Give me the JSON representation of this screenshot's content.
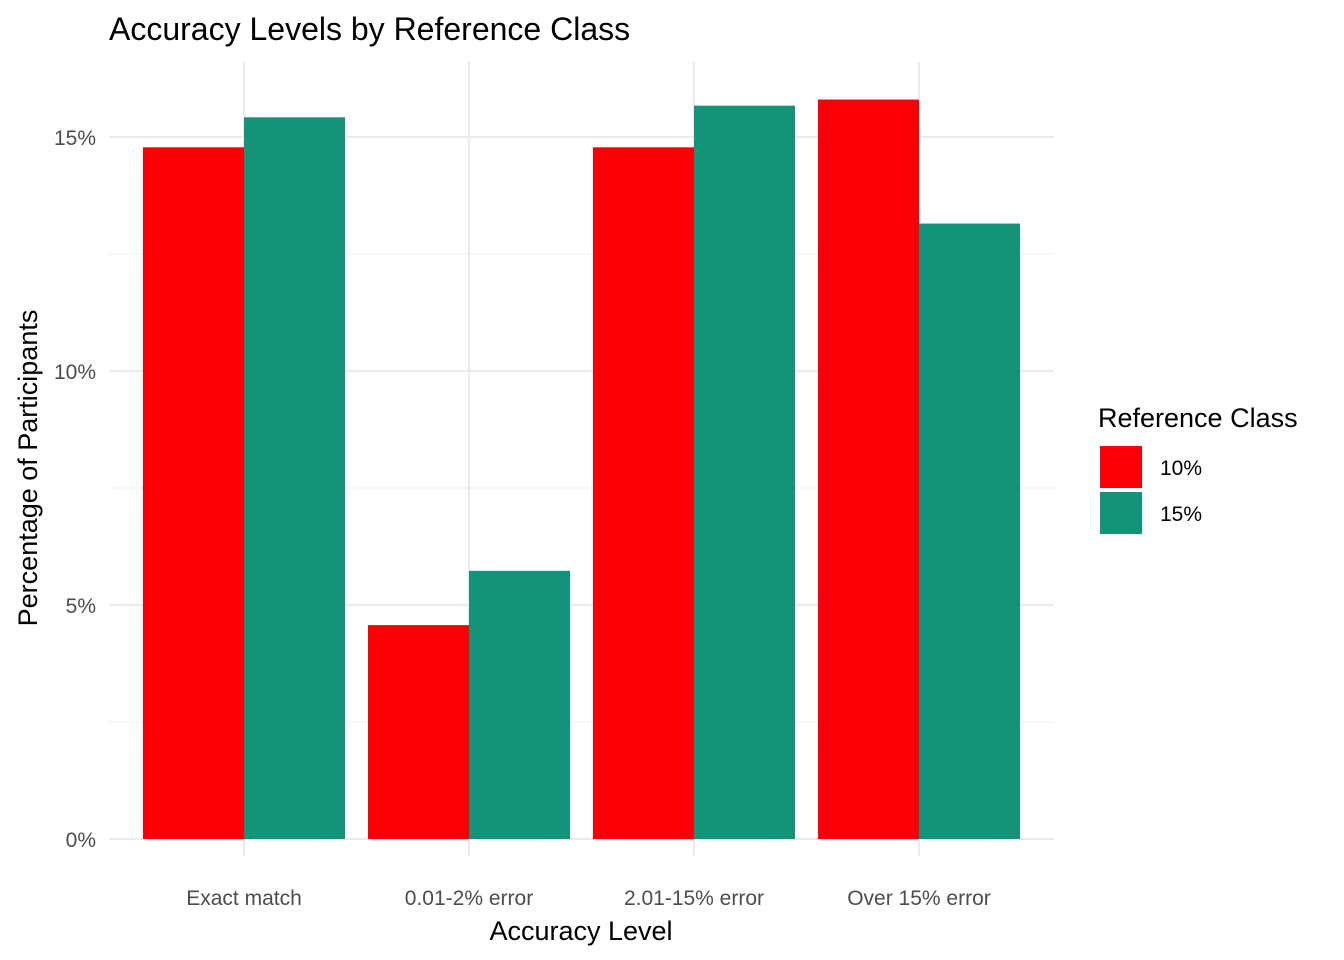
{
  "chart_data": {
    "type": "bar",
    "title": "Accuracy Levels by Reference Class",
    "xlabel": "Accuracy Level",
    "ylabel": "Percentage of Participants",
    "categories": [
      "Exact match",
      "0.01-2% error",
      "2.01-15% error",
      "Over 15% error"
    ],
    "series": [
      {
        "name": "10%",
        "color": "#fa0006",
        "values": [
          14.78,
          4.57,
          14.78,
          15.8
        ]
      },
      {
        "name": "15%",
        "color": "#139479",
        "values": [
          15.42,
          5.73,
          15.67,
          13.15
        ]
      }
    ],
    "ylim": [
      0,
      16.1
    ],
    "yticks": [
      0,
      5,
      10,
      15
    ],
    "ytick_labels": [
      "0%",
      "5%",
      "10%",
      "15%"
    ],
    "grid": true,
    "legend": {
      "title": "Reference Class",
      "position": "right"
    }
  }
}
